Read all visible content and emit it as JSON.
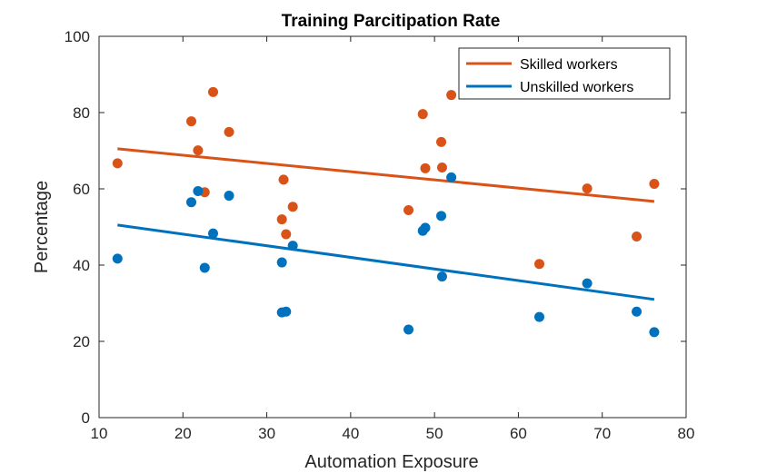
{
  "chart_data": {
    "type": "scatter",
    "title": "Training Parcitipation Rate",
    "xlabel": "Automation Exposure",
    "ylabel": "Percentage",
    "xlim": [
      10,
      80
    ],
    "ylim": [
      0,
      100
    ],
    "xticks": [
      10,
      20,
      30,
      40,
      50,
      60,
      70,
      80
    ],
    "yticks": [
      0,
      20,
      40,
      60,
      80,
      100
    ],
    "legend_position": "top-right",
    "grid": false,
    "series": [
      {
        "name": "Skilled workers",
        "color": "#D95319",
        "points": [
          [
            12.2,
            66.7
          ],
          [
            21.0,
            77.7
          ],
          [
            21.8,
            70.1
          ],
          [
            22.6,
            59.1
          ],
          [
            23.6,
            85.4
          ],
          [
            25.5,
            74.9
          ],
          [
            31.8,
            52.0
          ],
          [
            32.0,
            62.4
          ],
          [
            32.3,
            48.1
          ],
          [
            33.1,
            55.3
          ],
          [
            46.9,
            54.4
          ],
          [
            48.6,
            79.6
          ],
          [
            48.9,
            65.4
          ],
          [
            50.8,
            72.3
          ],
          [
            50.9,
            65.6
          ],
          [
            52.0,
            84.6
          ],
          [
            62.5,
            40.3
          ],
          [
            68.2,
            60.1
          ],
          [
            74.1,
            47.5
          ],
          [
            76.2,
            61.3
          ]
        ],
        "trend": [
          [
            12.2,
            70.5
          ],
          [
            76.2,
            56.7
          ]
        ]
      },
      {
        "name": "Unskilled workers",
        "color": "#0072BD",
        "points": [
          [
            12.2,
            41.7
          ],
          [
            21.0,
            56.5
          ],
          [
            21.8,
            59.4
          ],
          [
            22.6,
            39.3
          ],
          [
            23.6,
            48.3
          ],
          [
            25.5,
            58.2
          ],
          [
            31.8,
            40.7
          ],
          [
            31.8,
            27.6
          ],
          [
            32.3,
            27.8
          ],
          [
            33.1,
            45.1
          ],
          [
            46.9,
            23.1
          ],
          [
            48.6,
            49.0
          ],
          [
            48.9,
            49.8
          ],
          [
            50.8,
            52.9
          ],
          [
            50.9,
            37.0
          ],
          [
            52.0,
            63.0
          ],
          [
            62.5,
            26.4
          ],
          [
            68.2,
            35.2
          ],
          [
            74.1,
            27.8
          ],
          [
            76.2,
            22.4
          ]
        ],
        "trend": [
          [
            12.2,
            50.5
          ],
          [
            76.2,
            31.0
          ]
        ]
      }
    ]
  }
}
